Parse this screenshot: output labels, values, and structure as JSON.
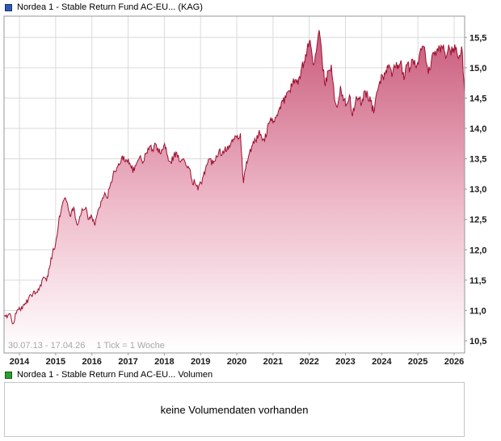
{
  "legend_price": {
    "label": "Nordea 1 - Stable Return Fund AC-EU... (KAG)",
    "marker_color": "#2b5bb8"
  },
  "legend_volume": {
    "label": "Nordea 1 - Stable Return Fund AC-EU... Volumen",
    "marker_color": "#2e9e2e"
  },
  "volume_panel": {
    "message": "keine Volumendaten vorhanden"
  },
  "chart_data": {
    "type": "area",
    "title": "Nordea 1 - Stable Return Fund AC-EU... (KAG)",
    "date_range_label": "30.07.13 - 17.04.26",
    "tick_note": "1 Tick = 1 Woche",
    "x_start": 2013.575,
    "x_end": 2026.29,
    "x_ticks": [
      2014,
      2015,
      2016,
      2017,
      2018,
      2019,
      2020,
      2021,
      2022,
      2023,
      2024,
      2025,
      2026
    ],
    "x_tick_labels": [
      "2014",
      "2015",
      "2016",
      "2017",
      "2018",
      "2019",
      "2020",
      "2021",
      "2022",
      "2023",
      "2024",
      "2025",
      "2026"
    ],
    "y_ticks": [
      10.5,
      11.0,
      11.5,
      12.0,
      12.5,
      13.0,
      13.5,
      14.0,
      14.5,
      15.0,
      15.5
    ],
    "y_tick_labels": [
      "10,5",
      "11,0",
      "11,5",
      "12,0",
      "12,5",
      "13,0",
      "13,5",
      "14,0",
      "14,5",
      "15,0",
      "15,5"
    ],
    "ylim": [
      10.3,
      15.85
    ],
    "grid": true,
    "legend_position": "top-left",
    "series_name": "Nordea 1 - Stable Return Fund AC-EU (KAG)",
    "values_monthly": [
      10.92,
      10.88,
      10.95,
      10.78,
      10.95,
      11.05,
      11.02,
      11.12,
      11.18,
      11.25,
      11.32,
      11.3,
      11.42,
      11.55,
      11.48,
      11.7,
      11.95,
      12.1,
      12.45,
      12.7,
      12.85,
      12.75,
      12.55,
      12.7,
      12.42,
      12.55,
      12.65,
      12.7,
      12.5,
      12.55,
      12.4,
      12.65,
      12.8,
      12.9,
      12.85,
      13.05,
      13.25,
      13.3,
      13.4,
      13.55,
      13.45,
      13.5,
      13.35,
      13.3,
      13.45,
      13.55,
      13.45,
      13.6,
      13.7,
      13.65,
      13.75,
      13.6,
      13.65,
      13.75,
      13.55,
      13.45,
      13.55,
      13.6,
      13.45,
      13.5,
      13.4,
      13.35,
      13.15,
      13.1,
      12.98,
      13.1,
      13.28,
      13.4,
      13.5,
      13.42,
      13.55,
      13.65,
      13.58,
      13.7,
      13.65,
      13.78,
      13.82,
      13.88,
      13.92,
      13.1,
      13.45,
      13.6,
      13.72,
      13.8,
      13.92,
      13.85,
      13.78,
      14.05,
      14.18,
      14.12,
      14.22,
      14.35,
      14.45,
      14.5,
      14.62,
      14.7,
      14.8,
      14.72,
      14.95,
      15.1,
      15.3,
      15.45,
      15.05,
      15.25,
      15.62,
      15.1,
      14.7,
      14.95,
      15.05,
      14.5,
      14.35,
      14.7,
      14.45,
      14.4,
      14.55,
      14.2,
      14.45,
      14.5,
      14.4,
      14.62,
      14.55,
      14.45,
      14.25,
      14.6,
      14.78,
      14.85,
      14.95,
      15.05,
      14.85,
      15.0,
      15.05,
      15.12,
      14.8,
      15.05,
      15.0,
      15.12,
      15.0,
      15.2,
      15.35,
      15.25,
      14.9,
      15.1,
      15.22,
      15.32,
      15.25,
      15.38,
      15.18,
      15.32,
      15.26,
      15.3,
      15.15,
      15.35,
      14.6
    ],
    "line_color": "#9e1030",
    "fill_gradient": [
      "#c65274",
      "#eeb9c9",
      "#ffffff"
    ],
    "grid_color": "#dadada",
    "border_color": "#979797",
    "axis_label_color": "#1a1a1a",
    "note_color": "#a8a8a8"
  }
}
